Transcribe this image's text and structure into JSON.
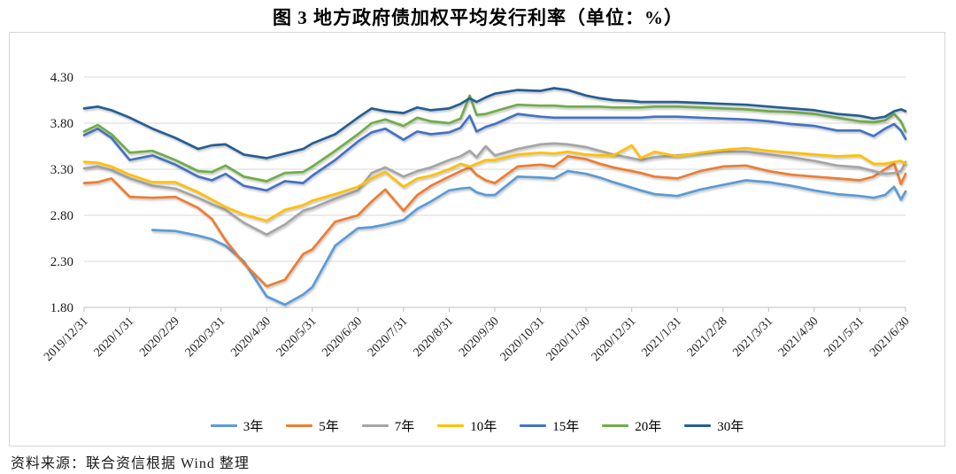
{
  "figure": {
    "title": "图 3  地方政府债加权平均发行利率（单位：%）",
    "source": "资料来源：联合资信根据 Wind 整理"
  },
  "chart_data": {
    "type": "line",
    "title": "图 3  地方政府债加权平均发行利率（单位：%）",
    "unit": "%",
    "grid": true,
    "legend_position": "bottom",
    "ylim": [
      1.8,
      4.3
    ],
    "yticks": [
      4.3,
      3.8,
      3.3,
      2.8,
      2.3,
      1.8
    ],
    "ytick_labels": [
      "4.30",
      "3.80",
      "3.30",
      "2.80",
      "2.30",
      "1.80"
    ],
    "x_tick_labels": [
      "2019/12/31",
      "2020/1/31",
      "2020/2/29",
      "2020/3/31",
      "2020/4/30",
      "2020/5/31",
      "2020/6/30",
      "2020/7/31",
      "2020/8/31",
      "2020/9/30",
      "2020/10/31",
      "2020/11/30",
      "2020/12/31",
      "2021/1/31",
      "2021/2/28",
      "2021/3/31",
      "2021/4/30",
      "2021/5/31",
      "2021/6/30"
    ],
    "x_months": [
      0,
      0.3,
      0.6,
      1,
      1.5,
      2,
      2.5,
      2.8,
      3.1,
      3.5,
      4,
      4.4,
      4.8,
      5,
      5.5,
      6,
      6.3,
      6.6,
      7,
      7.3,
      7.6,
      8,
      8.25,
      8.45,
      8.6,
      8.8,
      9,
      9.5,
      10,
      10.3,
      10.6,
      11,
      11.3,
      11.6,
      12,
      12.2,
      12.5,
      13,
      13.5,
      14,
      14.5,
      15,
      15.5,
      16,
      16.5,
      17,
      17.3,
      17.55,
      17.75,
      17.9,
      18
    ],
    "series": [
      {
        "name": "3年",
        "color": "#5B9BD5",
        "values": [
          null,
          null,
          null,
          null,
          2.64,
          2.63,
          2.58,
          2.54,
          2.47,
          2.3,
          1.92,
          1.83,
          1.94,
          2.02,
          2.47,
          2.66,
          2.67,
          2.7,
          2.75,
          2.87,
          2.95,
          3.07,
          3.09,
          3.1,
          3.05,
          3.02,
          3.02,
          3.22,
          3.21,
          3.2,
          3.28,
          3.25,
          3.21,
          3.16,
          3.1,
          3.07,
          3.03,
          3.01,
          3.08,
          3.13,
          3.18,
          3.16,
          3.12,
          3.07,
          3.03,
          3.01,
          2.99,
          3.02,
          3.11,
          2.97,
          3.06
        ]
      },
      {
        "name": "5年",
        "color": "#ED7D31",
        "values": [
          3.15,
          3.16,
          3.2,
          3.0,
          2.99,
          3.0,
          2.88,
          2.76,
          2.53,
          2.28,
          2.03,
          2.1,
          2.38,
          2.43,
          2.73,
          2.8,
          2.95,
          3.08,
          2.85,
          3.02,
          3.12,
          3.22,
          3.28,
          3.32,
          3.24,
          3.18,
          3.15,
          3.33,
          3.35,
          3.33,
          3.44,
          3.41,
          3.36,
          3.32,
          3.28,
          3.26,
          3.22,
          3.2,
          3.28,
          3.33,
          3.34,
          3.28,
          3.24,
          3.22,
          3.2,
          3.18,
          3.22,
          3.3,
          3.36,
          3.14,
          3.25
        ]
      },
      {
        "name": "7年",
        "color": "#A5A5A5",
        "values": [
          3.31,
          3.33,
          3.29,
          3.2,
          3.12,
          3.09,
          2.99,
          2.92,
          2.86,
          2.72,
          2.59,
          2.7,
          2.85,
          2.88,
          2.98,
          3.07,
          3.26,
          3.32,
          3.22,
          3.28,
          3.32,
          3.4,
          3.44,
          3.5,
          3.43,
          3.55,
          3.45,
          3.52,
          3.57,
          3.58,
          3.57,
          3.54,
          3.5,
          3.46,
          3.42,
          3.4,
          3.43,
          3.45,
          3.47,
          3.49,
          3.49,
          3.46,
          3.43,
          3.39,
          3.34,
          3.32,
          3.28,
          3.25,
          3.26,
          3.28,
          3.38
        ]
      },
      {
        "name": "10年",
        "color": "#FFC000",
        "values": [
          3.38,
          3.37,
          3.33,
          3.24,
          3.16,
          3.16,
          3.05,
          2.97,
          2.89,
          2.81,
          2.74,
          2.86,
          2.91,
          2.96,
          3.03,
          3.11,
          3.2,
          3.27,
          3.11,
          3.2,
          3.23,
          3.3,
          3.36,
          3.33,
          3.36,
          3.4,
          3.4,
          3.46,
          3.48,
          3.47,
          3.49,
          3.46,
          3.45,
          3.45,
          3.56,
          3.42,
          3.49,
          3.44,
          3.48,
          3.51,
          3.53,
          3.5,
          3.48,
          3.46,
          3.44,
          3.45,
          3.36,
          3.36,
          3.38,
          3.39,
          3.36
        ]
      },
      {
        "name": "15年",
        "color": "#4472C4",
        "values": [
          3.67,
          3.74,
          3.64,
          3.4,
          3.45,
          3.35,
          3.22,
          3.18,
          3.25,
          3.12,
          3.07,
          3.17,
          3.15,
          3.23,
          3.4,
          3.6,
          3.7,
          3.74,
          3.62,
          3.71,
          3.68,
          3.7,
          3.75,
          3.88,
          3.71,
          3.76,
          3.79,
          3.9,
          3.87,
          3.86,
          3.86,
          3.86,
          3.86,
          3.86,
          3.86,
          3.86,
          3.87,
          3.87,
          3.86,
          3.85,
          3.84,
          3.82,
          3.79,
          3.77,
          3.72,
          3.72,
          3.66,
          3.74,
          3.79,
          3.72,
          3.63
        ]
      },
      {
        "name": "20年",
        "color": "#70AD47",
        "values": [
          3.71,
          3.78,
          3.68,
          3.48,
          3.5,
          3.4,
          3.28,
          3.27,
          3.34,
          3.22,
          3.17,
          3.26,
          3.27,
          3.33,
          3.5,
          3.68,
          3.8,
          3.84,
          3.77,
          3.86,
          3.82,
          3.8,
          3.85,
          4.1,
          3.89,
          3.9,
          3.93,
          4.0,
          3.99,
          3.99,
          3.98,
          3.98,
          3.98,
          3.97,
          3.97,
          3.97,
          3.98,
          3.98,
          3.97,
          3.96,
          3.95,
          3.93,
          3.92,
          3.9,
          3.86,
          3.82,
          3.81,
          3.83,
          3.9,
          3.82,
          3.71
        ]
      },
      {
        "name": "30年",
        "color": "#255E91",
        "values": [
          3.96,
          3.98,
          3.94,
          3.86,
          3.74,
          3.64,
          3.52,
          3.56,
          3.57,
          3.46,
          3.42,
          3.47,
          3.52,
          3.58,
          3.68,
          3.86,
          3.96,
          3.93,
          3.91,
          3.97,
          3.94,
          3.96,
          4.01,
          4.07,
          4.03,
          4.08,
          4.12,
          4.16,
          4.15,
          4.18,
          4.16,
          4.1,
          4.07,
          4.05,
          4.04,
          4.03,
          4.03,
          4.03,
          4.02,
          4.01,
          4.0,
          3.98,
          3.96,
          3.94,
          3.9,
          3.88,
          3.85,
          3.87,
          3.93,
          3.95,
          3.93
        ]
      }
    ]
  }
}
